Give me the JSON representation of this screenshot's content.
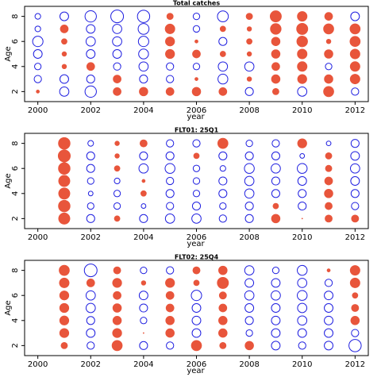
{
  "colors": {
    "positive": "#e8553b",
    "negative": "#1f1fe0",
    "frame": "#000000"
  },
  "chart_data": [
    {
      "type": "scatter",
      "title": "Total catches",
      "xlabel": "year",
      "ylabel": "Age",
      "xlim": [
        1999.5,
        2012.5
      ],
      "ylim": [
        1.2,
        8.8
      ],
      "xticks": [
        "2000",
        "2002",
        "2004",
        "2006",
        "2008",
        "2010",
        "2012"
      ],
      "yticks": [
        "2",
        "4",
        "6",
        "8"
      ],
      "x": [
        2000,
        2001,
        2002,
        2003,
        2004,
        2005,
        2006,
        2007,
        2008,
        2009,
        2010,
        2011,
        2012
      ],
      "ages": [
        8,
        7,
        6,
        5,
        4,
        3,
        2
      ],
      "residuals": [
        [
          -0.3,
          -0.7,
          -1.2,
          -1.5,
          -1.4,
          0.4,
          -0.4,
          -1.1,
          0.4,
          1.2,
          0.9,
          0.6,
          -0.7
        ],
        [
          -0.3,
          0.6,
          -0.7,
          -0.8,
          -1.1,
          0.9,
          -0.4,
          0.3,
          0.2,
          1.1,
          1.2,
          1.0,
          1.0
        ],
        [
          -1.0,
          0.3,
          -0.8,
          -0.8,
          -1.0,
          0.8,
          0.1,
          -0.6,
          0.3,
          0.7,
          1.1,
          0.2,
          1.0
        ],
        [
          -0.7,
          0.2,
          -0.7,
          -0.7,
          -0.9,
          0.8,
          0.6,
          0.3,
          0.2,
          0.7,
          0.9,
          0.7,
          0.9
        ],
        [
          -0.4,
          0.2,
          0.6,
          -0.5,
          -0.8,
          -0.5,
          -0.4,
          -0.8,
          -0.8,
          0.6,
          0.9,
          -0.4,
          0.9
        ],
        [
          -0.5,
          -0.7,
          -0.6,
          0.6,
          -0.6,
          -0.5,
          0.1,
          -0.9,
          0.2,
          0.7,
          0.8,
          0.7,
          0.9
        ],
        [
          0.1,
          -0.8,
          -1.2,
          0.6,
          0.7,
          0.6,
          0.7,
          0.6,
          -0.6,
          0.4,
          -0.8,
          1.0,
          -0.5
        ]
      ]
    },
    {
      "type": "scatter",
      "title": "FLT01: 25Q1",
      "xlabel": "year",
      "ylabel": "Age",
      "xlim": [
        1999.5,
        2012.5
      ],
      "ylim": [
        1.2,
        8.8
      ],
      "xticks": [
        "2000",
        "2002",
        "2004",
        "2006",
        "2008",
        "2010",
        "2012"
      ],
      "yticks": [
        "2",
        "4",
        "6",
        "8"
      ],
      "x": [
        2001,
        2002,
        2003,
        2004,
        2005,
        2006,
        2007,
        2008,
        2009,
        2010,
        2011,
        2012
      ],
      "ages": [
        8,
        7,
        6,
        5,
        4,
        3,
        2
      ],
      "residuals": [
        [
          1.3,
          -0.3,
          0.2,
          0.5,
          -0.5,
          -0.5,
          1.0,
          -0.4,
          -0.5,
          0.8,
          -0.2,
          -0.6
        ],
        [
          1.4,
          -0.6,
          0.2,
          -0.6,
          -0.6,
          0.3,
          -0.6,
          -0.6,
          -0.6,
          -0.2,
          0.4,
          -0.7
        ],
        [
          1.3,
          -0.6,
          0.3,
          -0.8,
          -0.9,
          -0.4,
          -0.3,
          -0.9,
          -0.8,
          -0.9,
          0.4,
          -0.8
        ],
        [
          1.2,
          -0.4,
          -0.3,
          0.1,
          -0.5,
          -0.4,
          -0.6,
          -0.8,
          -0.6,
          -0.7,
          0.6,
          -0.7
        ],
        [
          1.2,
          -0.2,
          -0.4,
          0.3,
          -0.6,
          -0.4,
          -0.6,
          -0.8,
          -0.6,
          -0.6,
          0.7,
          -0.6
        ],
        [
          1.3,
          -0.4,
          -0.4,
          -0.2,
          -0.5,
          -0.6,
          -0.4,
          -0.6,
          0.3,
          -0.6,
          0.5,
          -0.5
        ],
        [
          1.2,
          -0.6,
          0.3,
          -0.6,
          -0.8,
          -0.8,
          -0.5,
          -0.6,
          0.7,
          0.0,
          0.5,
          0.5
        ]
      ]
    },
    {
      "type": "scatter",
      "title": "FLT02: 25Q4",
      "xlabel": "year",
      "ylabel": "Age",
      "xlim": [
        1999.5,
        2012.5
      ],
      "ylim": [
        1.2,
        8.8
      ],
      "xticks": [
        "2000",
        "2002",
        "2004",
        "2006",
        "2008",
        "2010",
        "2012"
      ],
      "yticks": [
        "2",
        "4",
        "6",
        "8"
      ],
      "x": [
        2001,
        2002,
        2003,
        2004,
        2005,
        2006,
        2007,
        2008,
        2009,
        2010,
        2011,
        2012
      ],
      "ages": [
        8,
        7,
        6,
        5,
        4,
        3,
        2
      ],
      "residuals": [
        [
          1.0,
          -1.5,
          0.5,
          -0.4,
          -0.5,
          0.5,
          0.7,
          -0.8,
          -0.4,
          -0.9,
          0.1,
          0.9
        ],
        [
          0.9,
          0.6,
          0.8,
          0.2,
          0.8,
          0.3,
          1.2,
          -0.7,
          -0.7,
          -0.8,
          -0.5,
          0.9
        ],
        [
          0.8,
          -0.8,
          0.6,
          -0.7,
          0.6,
          -1.0,
          0.5,
          -0.8,
          -0.8,
          -0.9,
          -0.7,
          0.3
        ],
        [
          0.8,
          -0.8,
          0.7,
          -0.6,
          0.6,
          -0.7,
          0.6,
          -0.7,
          -0.7,
          -0.8,
          -0.7,
          0.5
        ],
        [
          0.8,
          -0.6,
          0.7,
          -0.4,
          0.7,
          -0.7,
          0.7,
          -0.6,
          -0.7,
          -0.8,
          -0.7,
          0.7
        ],
        [
          0.8,
          -0.7,
          0.8,
          0.0,
          0.7,
          -0.7,
          0.7,
          -0.4,
          -0.7,
          -0.7,
          -0.7,
          -0.5
        ],
        [
          0.4,
          -0.5,
          1.0,
          -0.6,
          -0.5,
          1.0,
          0.4,
          0.7,
          -0.7,
          -0.5,
          -0.7,
          -1.4
        ]
      ]
    }
  ]
}
